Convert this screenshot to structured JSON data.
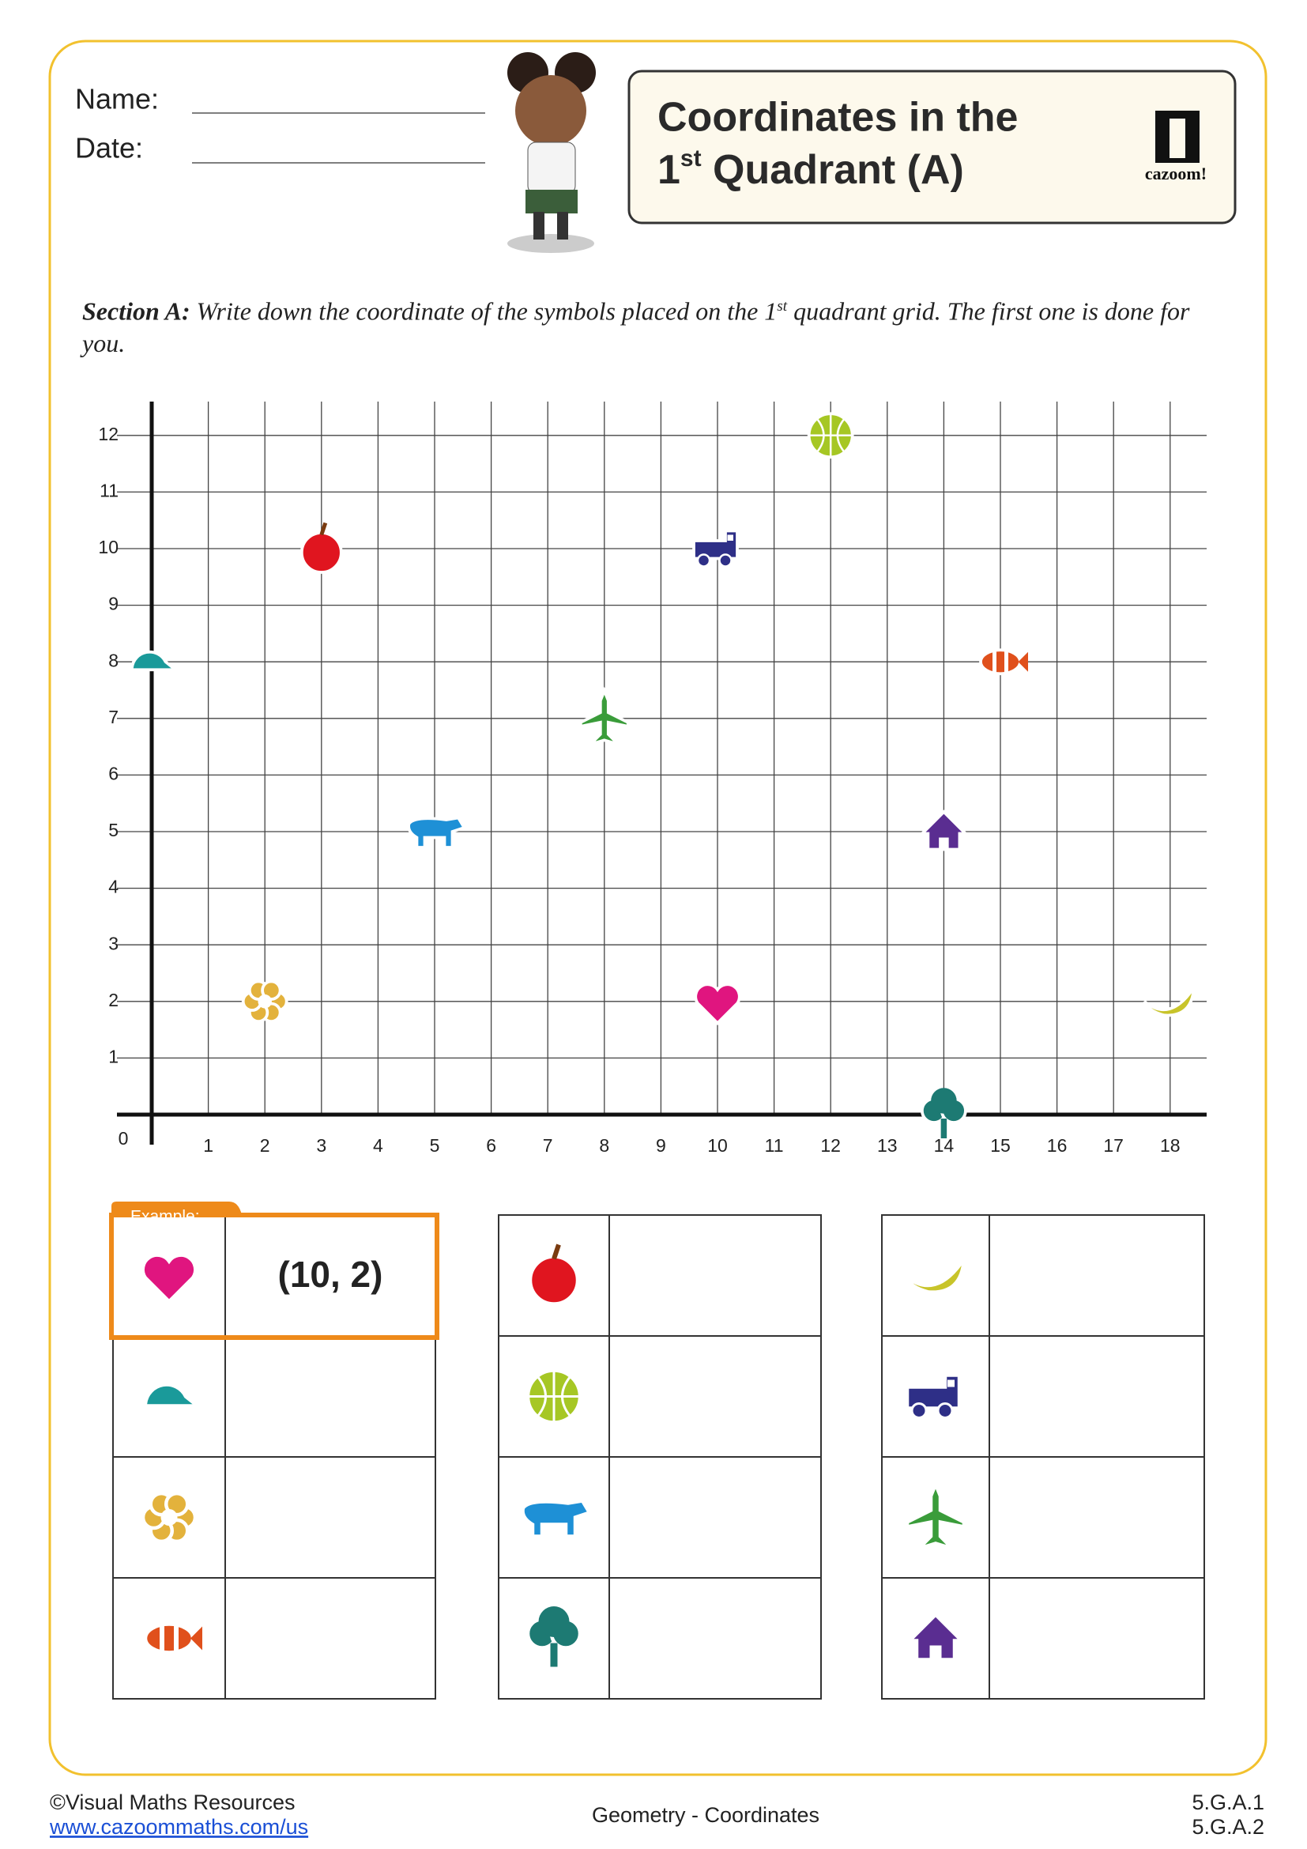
{
  "header": {
    "name_label": "Name:",
    "date_label": "Date:",
    "title_line1": "Coordinates in the",
    "title_line2_prefix": "1",
    "title_line2_sup": "st",
    "title_line2_rest": " Quadrant (A)",
    "logo": "cazoom!"
  },
  "instructions": {
    "section": "Section A:",
    "text_before": " Write down the coordinate of the symbols placed on the 1",
    "sup": "st",
    "text_after": " quadrant grid. The first one is done for you."
  },
  "grid": {
    "origin": 0,
    "xticks": [
      1,
      2,
      3,
      4,
      5,
      6,
      7,
      8,
      9,
      10,
      11,
      12,
      13,
      14,
      15,
      16,
      17,
      18
    ],
    "yticks": [
      1,
      2,
      3,
      4,
      5,
      6,
      7,
      8,
      9,
      10,
      11,
      12
    ],
    "symbols": [
      {
        "x": 10,
        "y": 2
      },
      {
        "x": 0,
        "y": 8
      },
      {
        "x": 2,
        "y": 2
      },
      {
        "x": 15,
        "y": 8
      },
      {
        "x": 3,
        "y": 10
      },
      {
        "x": 12,
        "y": 12
      },
      {
        "x": 5,
        "y": 5
      },
      {
        "x": 14,
        "y": 0
      },
      {
        "x": 18,
        "y": 2
      },
      {
        "x": 10,
        "y": 10
      },
      {
        "x": 8,
        "y": 7
      },
      {
        "x": 14,
        "y": 5
      }
    ]
  },
  "tables": {
    "example_label": "Example:",
    "example_answer": "(10, 2)"
  },
  "footer": {
    "copyright": "©Visual Maths Resources",
    "url": "www.cazoommaths.com/us",
    "topic": "Geometry - Coordinates",
    "standard_1": "5.G.A.1",
    "standard_2": "5.G.A.2"
  }
}
